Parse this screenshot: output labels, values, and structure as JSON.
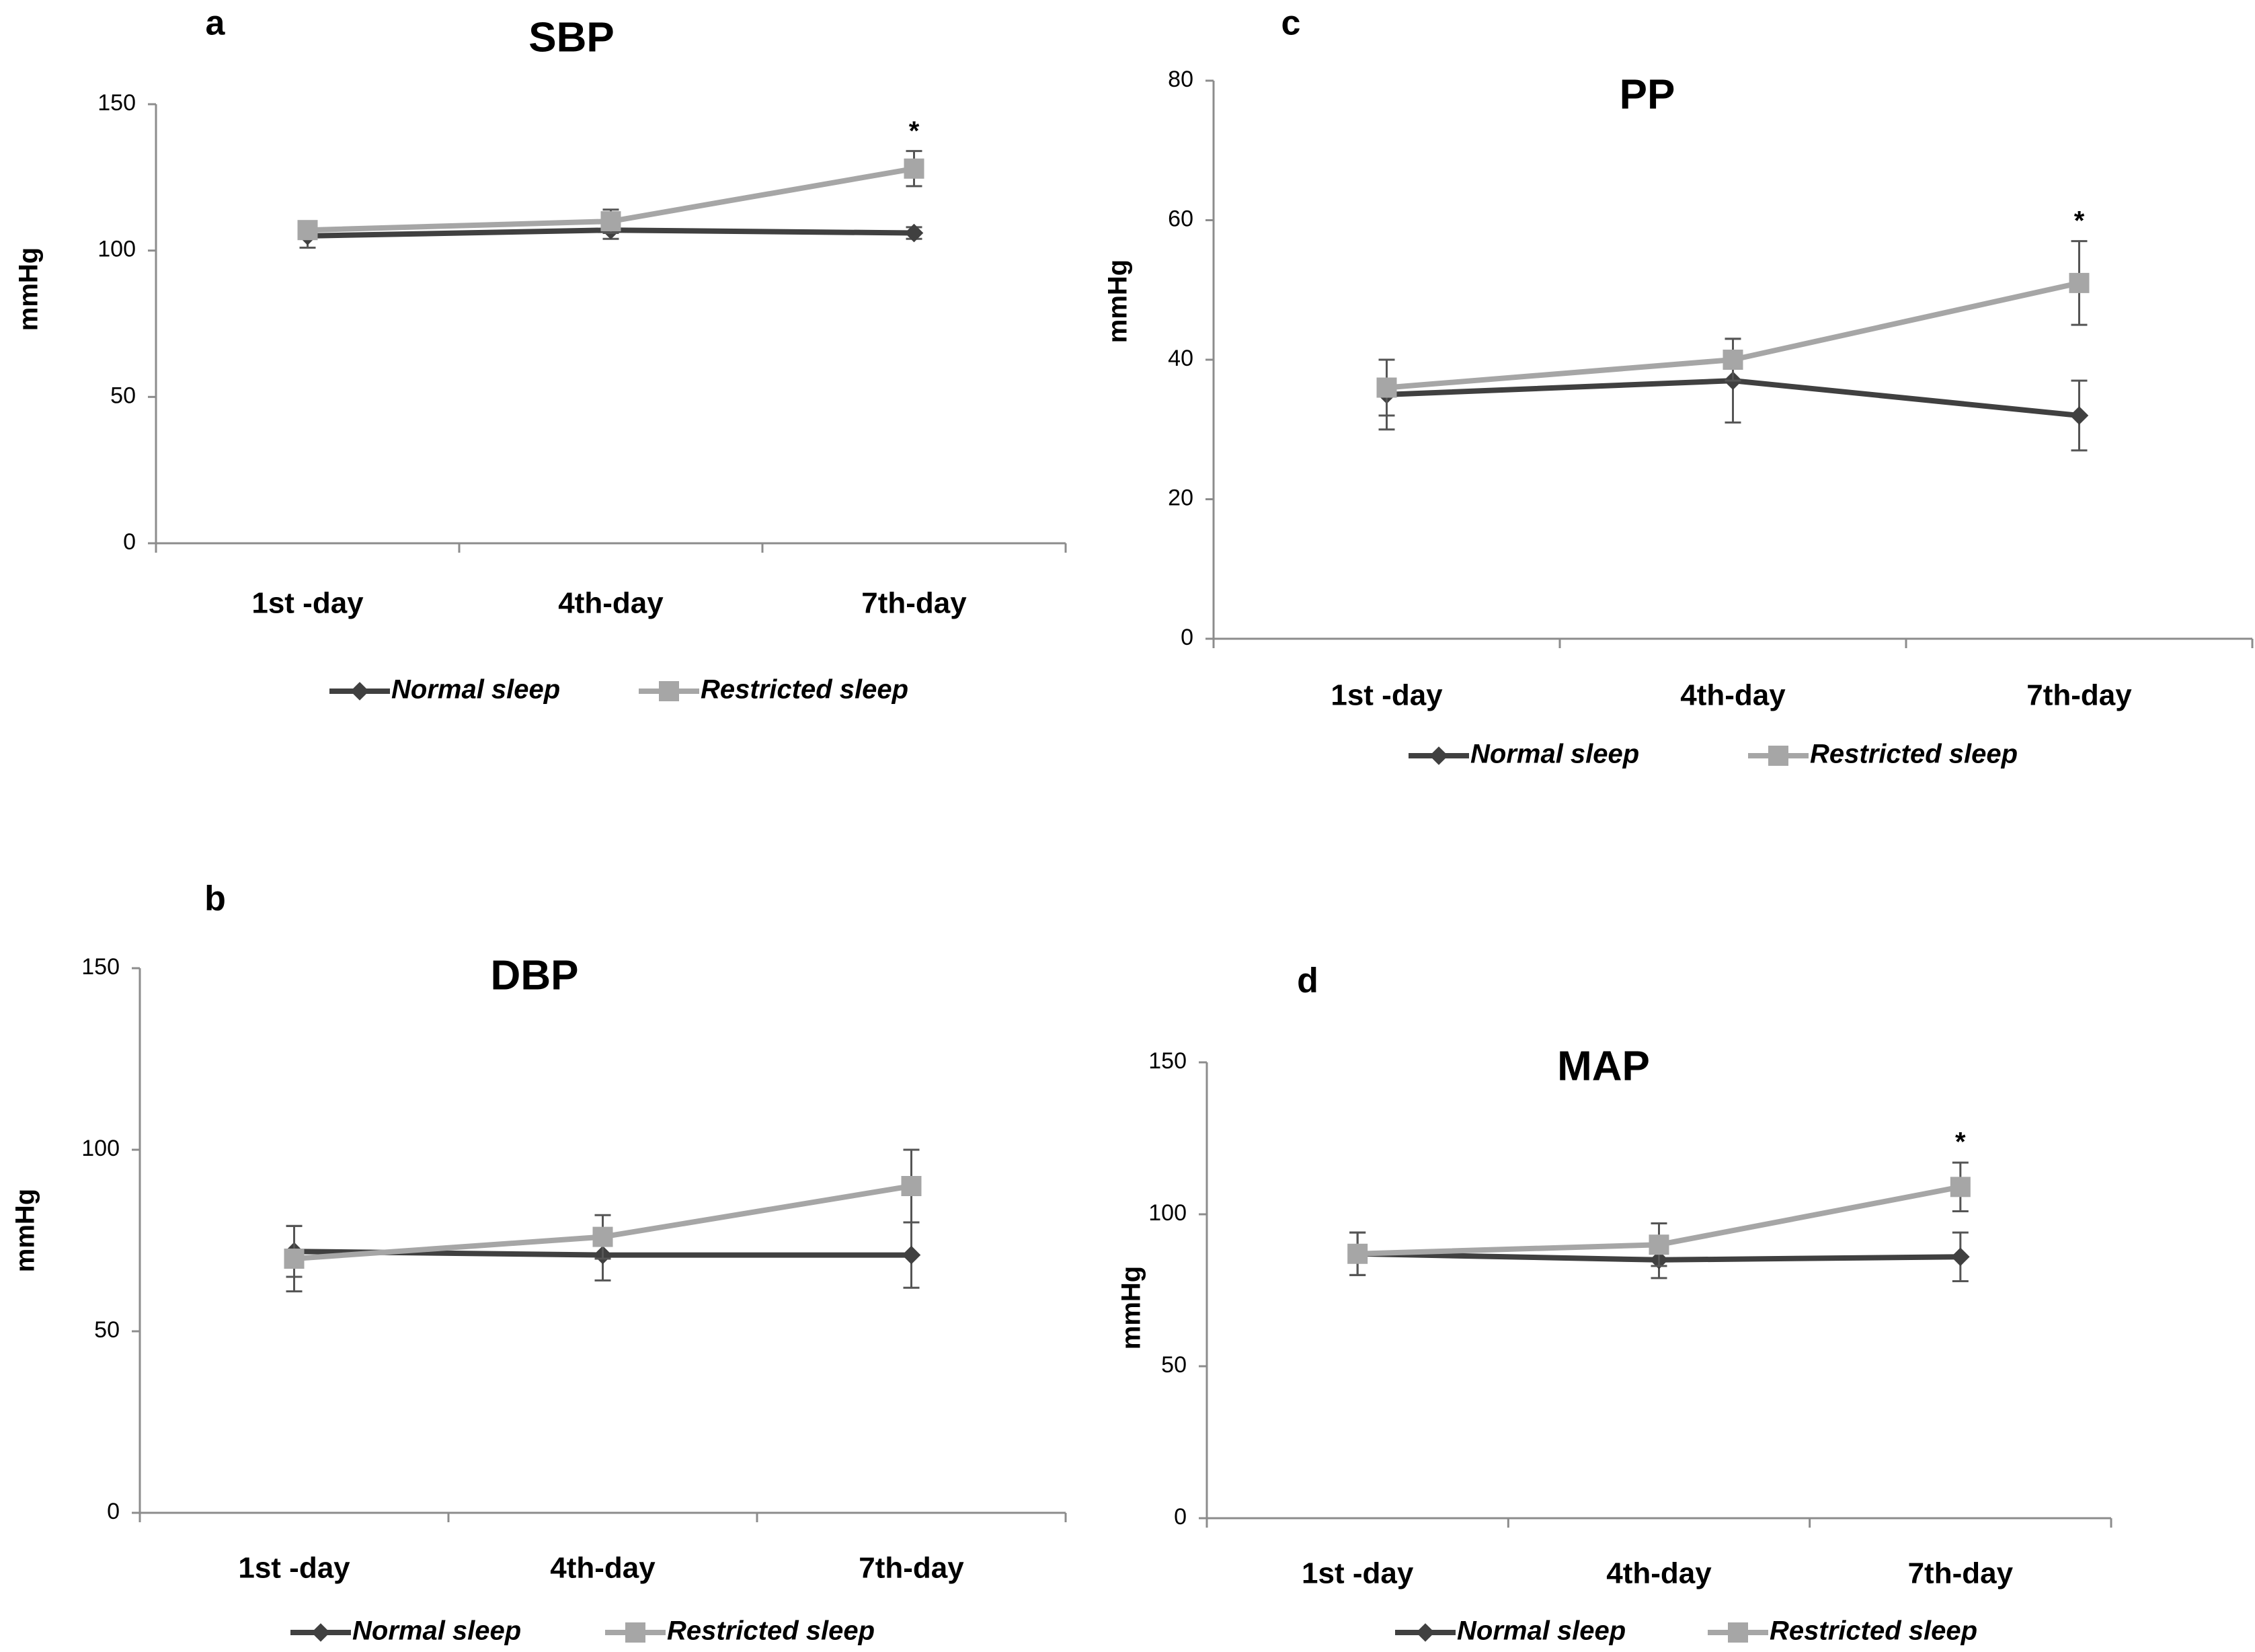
{
  "colors": {
    "normal": "#404040",
    "restricted": "#a6a6a6",
    "axis": "#8c8c8c"
  },
  "chart_data": [
    {
      "panel": "a",
      "type": "line",
      "title": "SBP",
      "ylabel": "mmHg",
      "xlabel": "",
      "categories": [
        "1st -day",
        "4th-day",
        "7th-day"
      ],
      "ylim": [
        0,
        150
      ],
      "yticks": [
        0,
        50,
        100,
        150
      ],
      "legend": "bottom",
      "grid": false,
      "series": [
        {
          "name": "Normal sleep",
          "values": [
            105,
            107,
            106
          ],
          "errors": [
            4,
            3,
            2
          ],
          "marker": "diamond-icon"
        },
        {
          "name": "Restricted sleep",
          "values": [
            107,
            110,
            128
          ],
          "errors": [
            3,
            4,
            6
          ],
          "marker": "square-icon"
        }
      ],
      "annotations": [
        {
          "text": "*",
          "category": "7th-day",
          "y": 141
        }
      ]
    },
    {
      "panel": "b",
      "type": "line",
      "title": "DBP",
      "ylabel": "mmHg",
      "xlabel": "",
      "categories": [
        "1st -day",
        "4th-day",
        "7th-day"
      ],
      "ylim": [
        0,
        150
      ],
      "yticks": [
        0,
        50,
        100,
        150
      ],
      "legend": "bottom",
      "grid": false,
      "series": [
        {
          "name": "Normal sleep",
          "values": [
            72,
            71,
            71
          ],
          "errors": [
            7,
            7,
            9
          ],
          "marker": "diamond-icon"
        },
        {
          "name": "Restricted sleep",
          "values": [
            70,
            76,
            90
          ],
          "errors": [
            9,
            6,
            10
          ],
          "marker": "square-icon"
        }
      ],
      "annotations": []
    },
    {
      "panel": "c",
      "type": "line",
      "title": "PP",
      "ylabel": "mmHg",
      "xlabel": "",
      "categories": [
        "1st -day",
        "4th-day",
        "7th-day"
      ],
      "ylim": [
        0,
        80
      ],
      "yticks": [
        0,
        20,
        40,
        60,
        80
      ],
      "legend": "bottom",
      "grid": false,
      "series": [
        {
          "name": "Normal sleep",
          "values": [
            35,
            37,
            32
          ],
          "errors": [
            5,
            6,
            5
          ],
          "marker": "diamond-icon"
        },
        {
          "name": "Restricted sleep",
          "values": [
            36,
            40,
            51
          ],
          "errors": [
            4,
            3,
            6
          ],
          "marker": "square-icon"
        }
      ],
      "annotations": [
        {
          "text": "*",
          "category": "7th-day",
          "y": 60
        }
      ]
    },
    {
      "panel": "d",
      "type": "line",
      "title": "MAP",
      "ylabel": "mmHg",
      "xlabel": "",
      "categories": [
        "1st -day",
        "4th-day",
        "7th-day"
      ],
      "ylim": [
        0,
        150
      ],
      "yticks": [
        0,
        50,
        100,
        150
      ],
      "legend": "bottom",
      "grid": false,
      "series": [
        {
          "name": "Normal sleep",
          "values": [
            87,
            85,
            86
          ],
          "errors": [
            7,
            6,
            8
          ],
          "marker": "diamond-icon"
        },
        {
          "name": "Restricted sleep",
          "values": [
            87,
            90,
            109
          ],
          "errors": [
            7,
            7,
            8
          ],
          "marker": "square-icon"
        }
      ],
      "annotations": [
        {
          "text": "*",
          "category": "7th-day",
          "y": 124
        }
      ]
    }
  ]
}
